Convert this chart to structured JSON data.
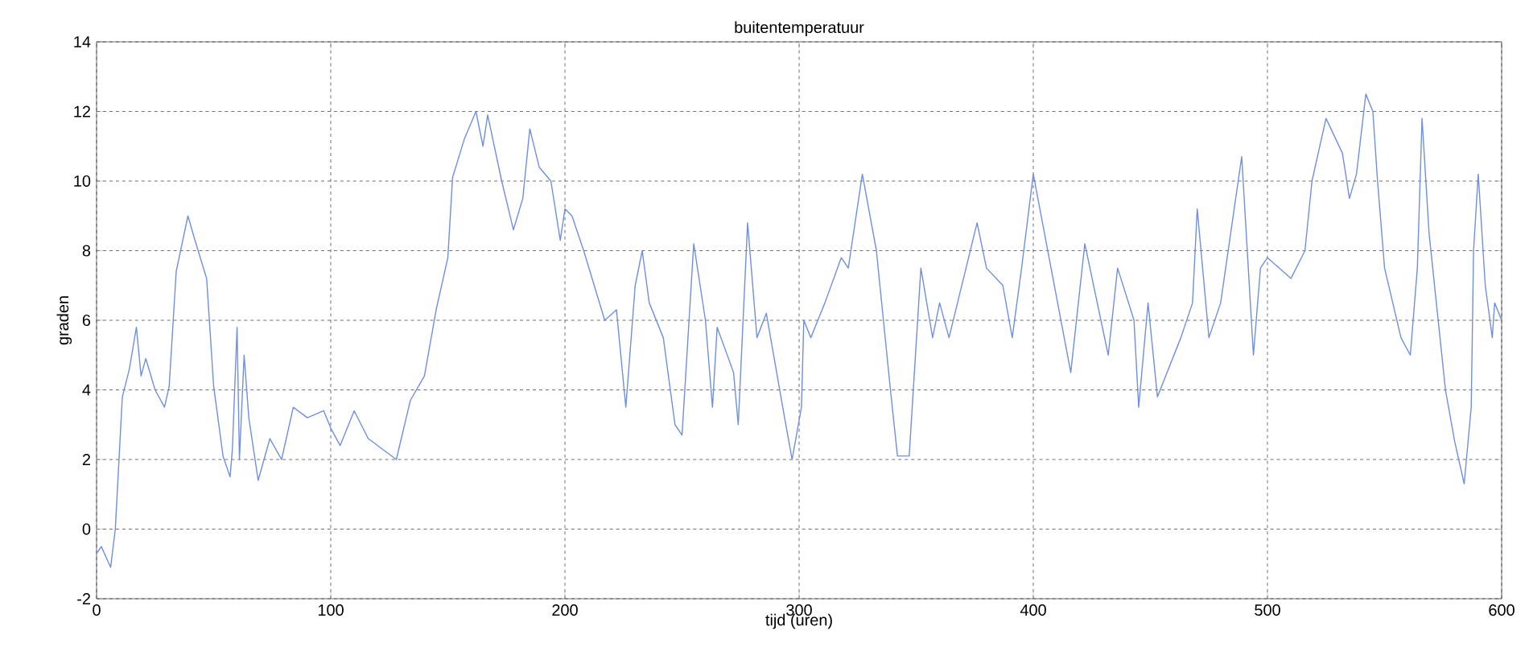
{
  "chart_data": {
    "type": "line",
    "title": "buitentemperatuur",
    "xlabel": "tijd (uren)",
    "ylabel": "graden",
    "xlim": [
      0,
      600
    ],
    "ylim": [
      -2,
      14
    ],
    "xticks": [
      0,
      100,
      200,
      300,
      400,
      500,
      600
    ],
    "yticks": [
      -2,
      0,
      2,
      4,
      6,
      8,
      10,
      12,
      14
    ],
    "grid": true,
    "line_style": "solid",
    "series": [
      {
        "color": "#6f8fe0",
        "x": [
          0,
          2,
          6,
          8,
          11,
          14,
          17,
          19,
          21,
          25,
          29,
          31,
          34,
          39,
          42,
          47,
          50,
          54,
          57,
          58,
          60,
          61,
          63,
          65,
          69,
          74,
          79,
          84,
          90,
          97,
          100,
          104,
          110,
          116,
          128,
          134,
          140,
          145,
          150,
          152,
          157,
          162,
          165,
          167,
          173,
          178,
          182,
          185,
          189,
          194,
          198,
          200,
          203,
          208,
          217,
          222,
          226,
          230,
          233,
          236,
          242,
          247,
          250,
          253,
          255,
          260,
          263,
          265,
          272,
          274,
          278,
          282,
          286,
          293,
          297,
          301,
          302,
          305,
          311,
          318,
          321,
          327,
          333,
          339,
          342,
          347,
          352,
          357,
          360,
          364,
          376,
          380,
          387,
          391,
          395,
          400,
          416,
          422,
          432,
          436,
          443,
          445,
          449,
          453,
          463,
          468,
          470,
          475,
          480,
          489,
          494,
          497,
          500,
          510,
          516,
          519,
          525,
          532,
          535,
          538,
          542,
          545,
          547,
          550,
          557,
          561,
          564,
          566,
          569,
          576,
          580,
          584,
          587,
          588,
          590,
          593,
          596,
          597,
          600
        ],
        "values": [
          -0.7,
          -0.5,
          -1.1,
          0,
          3.8,
          4.6,
          5.8,
          4.4,
          4.9,
          4.0,
          3.5,
          4.1,
          7.4,
          9.0,
          8.3,
          7.2,
          4.1,
          2.1,
          1.5,
          2.3,
          5.8,
          2.0,
          5.0,
          3.2,
          1.4,
          2.6,
          2.0,
          3.5,
          3.2,
          3.4,
          2.9,
          2.4,
          3.4,
          2.6,
          2.0,
          3.7,
          4.4,
          6.3,
          7.8,
          10.1,
          11.2,
          12.0,
          11.0,
          11.9,
          10.0,
          8.6,
          9.5,
          11.5,
          10.4,
          10.0,
          8.3,
          9.2,
          9.0,
          8.0,
          6.0,
          6.3,
          3.5,
          7.0,
          8.0,
          6.5,
          5.5,
          3.0,
          2.7,
          6.0,
          8.2,
          6.0,
          3.5,
          5.8,
          4.5,
          3.0,
          8.8,
          5.5,
          6.2,
          3.5,
          2.0,
          3.5,
          6.0,
          5.5,
          6.5,
          7.8,
          7.5,
          10.2,
          8.0,
          4.0,
          2.1,
          2.1,
          7.5,
          5.5,
          6.5,
          5.5,
          8.8,
          7.5,
          7.0,
          5.5,
          7.5,
          10.2,
          4.5,
          8.2,
          5.0,
          7.5,
          6.0,
          3.5,
          6.5,
          3.8,
          5.5,
          6.5,
          9.2,
          5.5,
          6.5,
          10.7,
          5.0,
          7.5,
          7.8,
          7.2,
          8.0,
          10.0,
          11.8,
          10.8,
          9.5,
          10.2,
          12.5,
          12.0,
          10.0,
          7.5,
          5.5,
          5.0,
          7.5,
          11.8,
          8.5,
          4.0,
          2.5,
          1.3,
          3.5,
          8.0,
          10.2,
          7.0,
          5.5,
          6.5,
          6.0
        ]
      }
    ]
  }
}
